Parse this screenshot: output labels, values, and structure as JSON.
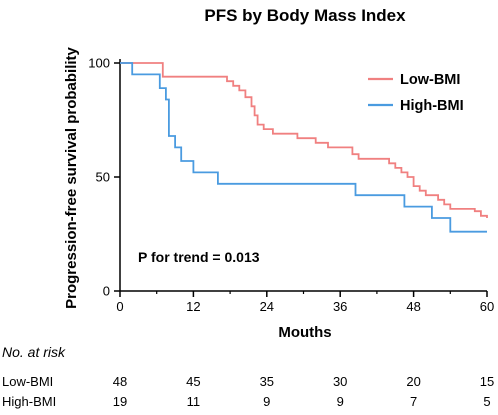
{
  "chart_data": {
    "type": "line",
    "subtype": "kaplan-meier step",
    "title": "PFS by Body Mass Index",
    "xlabel": "Mouths",
    "ylabel": "Progression-free survival probability",
    "xlim": [
      0,
      60
    ],
    "ylim": [
      0,
      100
    ],
    "xticks": [
      0,
      12,
      24,
      36,
      48,
      60
    ],
    "yticks": [
      0,
      50,
      100
    ],
    "grid": false,
    "legend_position": "top-right",
    "annotation": "P for trend = 0.013",
    "series": [
      {
        "name": "Low-BMI",
        "color": "#f08080",
        "points": [
          [
            0,
            100
          ],
          [
            6,
            100
          ],
          [
            7,
            94
          ],
          [
            17,
            94
          ],
          [
            17.5,
            92
          ],
          [
            18.5,
            90
          ],
          [
            19.5,
            88
          ],
          [
            20.5,
            85
          ],
          [
            21.5,
            81
          ],
          [
            22,
            77
          ],
          [
            22.5,
            73
          ],
          [
            23.5,
            71
          ],
          [
            25,
            69
          ],
          [
            29,
            67
          ],
          [
            32,
            65
          ],
          [
            34,
            63
          ],
          [
            38,
            60
          ],
          [
            39,
            58
          ],
          [
            44,
            56
          ],
          [
            45,
            54
          ],
          [
            46,
            52
          ],
          [
            47,
            50
          ],
          [
            48,
            46
          ],
          [
            49,
            44
          ],
          [
            50,
            42
          ],
          [
            52,
            40
          ],
          [
            53,
            38
          ],
          [
            54,
            36
          ],
          [
            58,
            35
          ],
          [
            59,
            33
          ],
          [
            60,
            32
          ]
        ]
      },
      {
        "name": "High-BMI",
        "color": "#4a9be0",
        "points": [
          [
            0,
            100
          ],
          [
            2,
            95
          ],
          [
            6,
            95
          ],
          [
            6.5,
            89
          ],
          [
            7.5,
            84
          ],
          [
            8,
            68
          ],
          [
            9,
            63
          ],
          [
            10,
            57
          ],
          [
            12,
            52
          ],
          [
            15,
            52
          ],
          [
            16,
            47
          ],
          [
            38,
            47
          ],
          [
            38.5,
            42
          ],
          [
            46,
            42
          ],
          [
            46.5,
            37
          ],
          [
            50,
            37
          ],
          [
            51,
            32
          ],
          [
            53,
            32
          ],
          [
            54,
            26
          ],
          [
            60,
            26
          ]
        ]
      }
    ],
    "risk_table": {
      "title": "No. at risk",
      "timepoints": [
        0,
        12,
        24,
        36,
        48,
        60
      ],
      "rows": [
        {
          "name": "Low-BMI",
          "values": [
            "48",
            "45",
            "35",
            "30",
            "20",
            "15"
          ]
        },
        {
          "name": "High-BMI",
          "values": [
            "19",
            "11",
            "9",
            "9",
            "7",
            "5"
          ]
        }
      ]
    }
  }
}
